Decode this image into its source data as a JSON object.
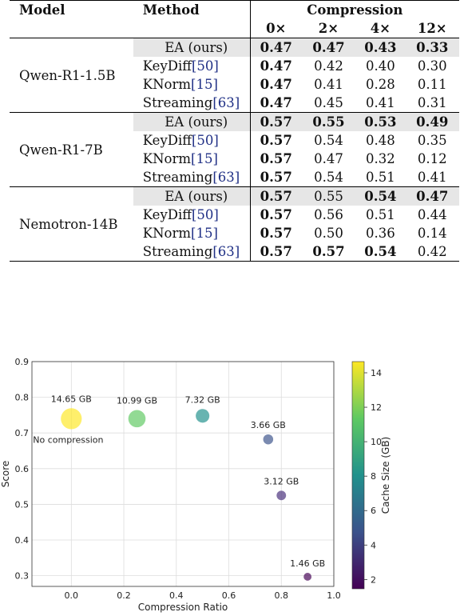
{
  "table": {
    "headers": {
      "model": "Model",
      "method": "Method",
      "compression": "Compression",
      "ratios": [
        "0×",
        "2×",
        "4×",
        "12×"
      ]
    },
    "groups": [
      {
        "model": "Qwen-R1-1.5B",
        "rows": [
          {
            "method": "EA (ours)",
            "ref": "",
            "values": [
              "0.47",
              "0.47",
              "0.43",
              "0.33"
            ],
            "bold": [
              true,
              true,
              true,
              true
            ],
            "highlight": true
          },
          {
            "method": "KeyDiff",
            "ref": "[50]",
            "values": [
              "0.47",
              "0.42",
              "0.40",
              "0.30"
            ],
            "bold": [
              true,
              false,
              false,
              false
            ],
            "highlight": false
          },
          {
            "method": "KNorm",
            "ref": "[15]",
            "values": [
              "0.47",
              "0.41",
              "0.28",
              "0.11"
            ],
            "bold": [
              true,
              false,
              false,
              false
            ],
            "highlight": false
          },
          {
            "method": "Streaming",
            "ref": "[63]",
            "values": [
              "0.47",
              "0.45",
              "0.41",
              "0.31"
            ],
            "bold": [
              true,
              false,
              false,
              false
            ],
            "highlight": false
          }
        ]
      },
      {
        "model": "Qwen-R1-7B",
        "rows": [
          {
            "method": "EA (ours)",
            "ref": "",
            "values": [
              "0.57",
              "0.55",
              "0.53",
              "0.49"
            ],
            "bold": [
              true,
              true,
              true,
              true
            ],
            "highlight": true
          },
          {
            "method": "KeyDiff",
            "ref": "[50]",
            "values": [
              "0.57",
              "0.54",
              "0.48",
              "0.35"
            ],
            "bold": [
              true,
              false,
              false,
              false
            ],
            "highlight": false
          },
          {
            "method": "KNorm",
            "ref": "[15]",
            "values": [
              "0.57",
              "0.47",
              "0.32",
              "0.12"
            ],
            "bold": [
              true,
              false,
              false,
              false
            ],
            "highlight": false
          },
          {
            "method": "Streaming",
            "ref": "[63]",
            "values": [
              "0.57",
              "0.54",
              "0.51",
              "0.41"
            ],
            "bold": [
              true,
              false,
              false,
              false
            ],
            "highlight": false
          }
        ]
      },
      {
        "model": "Nemotron-14B",
        "rows": [
          {
            "method": "EA (ours)",
            "ref": "",
            "values": [
              "0.57",
              "0.55",
              "0.54",
              "0.47"
            ],
            "bold": [
              true,
              false,
              true,
              true
            ],
            "highlight": true
          },
          {
            "method": "KeyDiff",
            "ref": "[50]",
            "values": [
              "0.57",
              "0.56",
              "0.51",
              "0.44"
            ],
            "bold": [
              true,
              false,
              false,
              false
            ],
            "highlight": false
          },
          {
            "method": "KNorm",
            "ref": "[15]",
            "values": [
              "0.57",
              "0.50",
              "0.36",
              "0.14"
            ],
            "bold": [
              true,
              false,
              false,
              false
            ],
            "highlight": false
          },
          {
            "method": "Streaming",
            "ref": "[63]",
            "values": [
              "0.57",
              "0.57",
              "0.54",
              "0.42"
            ],
            "bold": [
              true,
              true,
              true,
              false
            ],
            "highlight": false
          }
        ]
      }
    ]
  },
  "chart_data": {
    "type": "scatter",
    "xlabel": "Compression Ratio",
    "ylabel": "Score",
    "xlim": [
      -0.15,
      1.0
    ],
    "ylim": [
      0.27,
      0.9
    ],
    "xticks": [
      "0.0",
      "0.2",
      "0.4",
      "0.6",
      "0.8",
      "1.0"
    ],
    "yticks": [
      "0.3",
      "0.4",
      "0.5",
      "0.6",
      "0.7",
      "0.8",
      "0.9"
    ],
    "grid": true,
    "colorbar": {
      "label": "Cache Size (GB)",
      "min": 1.46,
      "max": 14.65,
      "ticks": [
        "2",
        "4",
        "6",
        "8",
        "10",
        "12",
        "14"
      ]
    },
    "points": [
      {
        "x": 0.0,
        "y": 0.74,
        "size_gb": 14.65,
        "label": "14.65 GB",
        "color": "#fde725"
      },
      {
        "x": 0.25,
        "y": 0.74,
        "size_gb": 10.99,
        "label": "10.99 GB",
        "color": "#5ec962"
      },
      {
        "x": 0.5,
        "y": 0.748,
        "size_gb": 7.32,
        "label": "7.32 GB",
        "color": "#21918c"
      },
      {
        "x": 0.75,
        "y": 0.682,
        "size_gb": 3.66,
        "label": "3.66 GB",
        "color": "#3b528b"
      },
      {
        "x": 0.8,
        "y": 0.525,
        "size_gb": 3.12,
        "label": "3.12 GB",
        "color": "#472d7b"
      },
      {
        "x": 0.9,
        "y": 0.297,
        "size_gb": 1.46,
        "label": "1.46 GB",
        "color": "#440154"
      }
    ],
    "annotations": [
      {
        "text": "No compression",
        "x": 0.0,
        "y": 0.74
      }
    ]
  }
}
